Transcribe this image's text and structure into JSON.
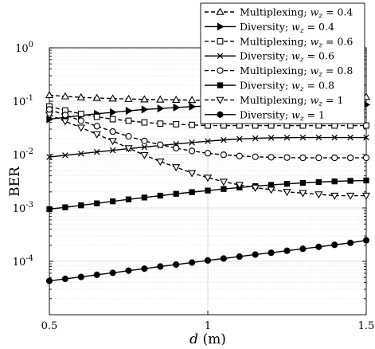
{
  "chart_data": {
    "type": "line",
    "xlabel_var": "d",
    "xlabel_unit": " (m)",
    "ylabel": "BER",
    "xlim": [
      0.5,
      1.5
    ],
    "ylim": [
      1e-05,
      1
    ],
    "yscale": "log",
    "grid": true,
    "legend_position": "top-right",
    "x_ticks": [
      {
        "value": 0.5,
        "label": "0.5"
      },
      {
        "value": 1.0,
        "label": "1"
      },
      {
        "value": 1.5,
        "label": "1.5"
      }
    ],
    "y_ticks": [
      {
        "value": 1,
        "label": "10",
        "exp": "0"
      },
      {
        "value": 0.1,
        "label": "10",
        "exp": "-1"
      },
      {
        "value": 0.01,
        "label": "10",
        "exp": "-2"
      },
      {
        "value": 0.001,
        "label": "10",
        "exp": "-3"
      },
      {
        "value": 0.0001,
        "label": "10",
        "exp": "-4"
      }
    ],
    "x": [
      0.5,
      0.55,
      0.6,
      0.65,
      0.7,
      0.75,
      0.8,
      0.85,
      0.9,
      0.95,
      1.0,
      1.05,
      1.1,
      1.15,
      1.2,
      1.25,
      1.3,
      1.35,
      1.4,
      1.45,
      1.5
    ],
    "series": [
      {
        "name": "Multiplexing; ",
        "wz": "0.4",
        "marker": "triangle-up",
        "dashed": true,
        "x": [
          0.5,
          0.55,
          0.6,
          0.65,
          0.7,
          0.75,
          0.8,
          0.85,
          0.9,
          0.95,
          1.0,
          1.05,
          1.1,
          1.15,
          1.2,
          1.25,
          1.3,
          1.35,
          1.4,
          1.45,
          1.5
        ],
        "values": [
          0.13,
          0.123,
          0.118,
          0.115,
          0.112,
          0.11,
          0.108,
          0.107,
          0.106,
          0.105,
          0.104,
          0.103,
          0.102,
          0.102,
          0.102,
          0.103,
          0.103,
          0.103,
          0.103,
          0.104,
          0.12
        ]
      },
      {
        "name": "Diversity; ",
        "wz": "0.4",
        "marker": "triangle-right",
        "dashed": false,
        "x": [
          0.5,
          0.55,
          0.6,
          0.65,
          0.7,
          0.75,
          0.8,
          0.85,
          0.9,
          0.95,
          1.0,
          1.05,
          1.1,
          1.15,
          1.2,
          1.25,
          1.3,
          1.35,
          1.4,
          1.45,
          1.5
        ],
        "values": [
          0.046,
          0.05,
          0.054,
          0.058,
          0.062,
          0.066,
          0.07,
          0.073,
          0.076,
          0.079,
          0.081,
          0.083,
          0.084,
          0.085,
          0.086,
          0.086,
          0.086,
          0.086,
          0.086,
          0.086,
          0.086
        ]
      },
      {
        "name": "Multiplexing; ",
        "wz": "0.6",
        "marker": "square-open",
        "dashed": true,
        "x": [
          0.5,
          0.55,
          0.6,
          0.65,
          0.7,
          0.75,
          0.8,
          0.85,
          0.9,
          0.95,
          1.0,
          1.05,
          1.1,
          1.15,
          1.2,
          1.25,
          1.3,
          1.35,
          1.4,
          1.45,
          1.5
        ],
        "values": [
          0.08,
          0.067,
          0.058,
          0.051,
          0.046,
          0.043,
          0.04,
          0.038,
          0.037,
          0.036,
          0.035,
          0.035,
          0.035,
          0.035,
          0.035,
          0.035,
          0.035,
          0.035,
          0.035,
          0.035,
          0.035
        ]
      },
      {
        "name": "Diversity; ",
        "wz": "0.6",
        "marker": "x",
        "dashed": false,
        "x": [
          0.5,
          0.55,
          0.6,
          0.65,
          0.7,
          0.75,
          0.8,
          0.85,
          0.9,
          0.95,
          1.0,
          1.05,
          1.1,
          1.15,
          1.2,
          1.25,
          1.3,
          1.35,
          1.4,
          1.45,
          1.5
        ],
        "values": [
          0.009,
          0.0097,
          0.0104,
          0.0112,
          0.012,
          0.0129,
          0.0138,
          0.0148,
          0.0158,
          0.0168,
          0.0178,
          0.0188,
          0.0196,
          0.0202,
          0.0206,
          0.0208,
          0.0209,
          0.0209,
          0.0209,
          0.0209,
          0.0209
        ]
      },
      {
        "name": "Multiplexing; ",
        "wz": "0.8",
        "marker": "circle-open",
        "dashed": true,
        "x": [
          0.5,
          0.55,
          0.6,
          0.65,
          0.7,
          0.75,
          0.8,
          0.85,
          0.9,
          0.95,
          1.0,
          1.05,
          1.1,
          1.15,
          1.2,
          1.25,
          1.3,
          1.35,
          1.4,
          1.45,
          1.5
        ],
        "values": [
          0.07,
          0.055,
          0.043,
          0.034,
          0.027,
          0.022,
          0.018,
          0.0153,
          0.0132,
          0.0117,
          0.0106,
          0.0099,
          0.0094,
          0.0091,
          0.0089,
          0.0088,
          0.0087,
          0.0087,
          0.0087,
          0.0087,
          0.0087
        ]
      },
      {
        "name": "Diversity; ",
        "wz": "0.8",
        "marker": "square-filled",
        "dashed": false,
        "x": [
          0.5,
          0.55,
          0.6,
          0.65,
          0.7,
          0.75,
          0.8,
          0.85,
          0.9,
          0.95,
          1.0,
          1.05,
          1.1,
          1.15,
          1.2,
          1.25,
          1.3,
          1.35,
          1.4,
          1.45,
          1.5
        ],
        "values": [
          0.00095,
          0.00103,
          0.00112,
          0.00122,
          0.00133,
          0.00145,
          0.00157,
          0.0017,
          0.00184,
          0.00198,
          0.00212,
          0.00227,
          0.00242,
          0.00256,
          0.0027,
          0.00283,
          0.00295,
          0.00306,
          0.00315,
          0.00322,
          0.00327
        ]
      },
      {
        "name": "Multiplexing; ",
        "wz": "1",
        "marker": "triangle-down",
        "dashed": true,
        "x": [
          0.5,
          0.55,
          0.6,
          0.65,
          0.7,
          0.75,
          0.8,
          0.85,
          0.9,
          0.95,
          1.0,
          1.05,
          1.1,
          1.15,
          1.2,
          1.25,
          1.3,
          1.35,
          1.4,
          1.45,
          1.5
        ],
        "values": [
          0.056,
          0.042,
          0.032,
          0.024,
          0.018,
          0.0132,
          0.0098,
          0.0074,
          0.0058,
          0.0045,
          0.0037,
          0.0031,
          0.0027,
          0.0024,
          0.0022,
          0.002,
          0.0019,
          0.0018,
          0.0017,
          0.0017,
          0.0017
        ]
      },
      {
        "name": "Diversity; ",
        "wz": "1",
        "marker": "circle-filled",
        "dashed": false,
        "x": [
          0.5,
          0.55,
          0.6,
          0.65,
          0.7,
          0.75,
          0.8,
          0.85,
          0.9,
          0.95,
          1.0,
          1.05,
          1.1,
          1.15,
          1.2,
          1.25,
          1.3,
          1.35,
          1.4,
          1.45,
          1.5
        ],
        "values": [
          4.3e-05,
          4.7e-05,
          5.1e-05,
          5.6e-05,
          6.1e-05,
          6.7e-05,
          7.3e-05,
          8e-05,
          8.7e-05,
          9.5e-05,
          0.000104,
          0.000113,
          0.000123,
          0.000134,
          0.000145,
          0.000158,
          0.000172,
          0.000187,
          0.000204,
          0.000222,
          0.000248
        ]
      }
    ]
  }
}
